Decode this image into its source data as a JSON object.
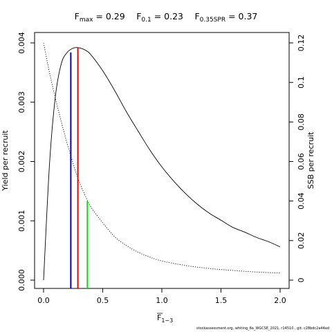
{
  "chart_data": {
    "type": "line",
    "title": {
      "parts": [
        {
          "symbol": "F",
          "sub": "max",
          "value": "0.29"
        },
        {
          "symbol": "F",
          "sub": "0.1",
          "value": "0.23"
        },
        {
          "symbol": "F",
          "sub": "0.35SPR",
          "value": "0.37"
        }
      ],
      "equals": "="
    },
    "xlabel": {
      "symbol": "F",
      "sub": "1−3"
    },
    "ylabel_left": "Yield per recruit",
    "ylabel_right": "SSB per recruit",
    "xlim": [
      0,
      2
    ],
    "ylim_left": [
      0,
      0.004
    ],
    "ylim_right": [
      0,
      0.12
    ],
    "x_ticks": [
      "0.0",
      "0.5",
      "1.0",
      "1.5",
      "2.0"
    ],
    "y_left_ticks": [
      "0.000",
      "0.001",
      "0.002",
      "0.003",
      "0.004"
    ],
    "y_right_ticks": [
      "0",
      "0.02",
      "0.04",
      "0.06",
      "0.08",
      "0.1",
      "0.12"
    ],
    "series": [
      {
        "axis": "left",
        "style": "solid",
        "color": "#000000",
        "x": [
          0,
          0.05,
          0.1,
          0.15,
          0.2,
          0.25,
          0.29,
          0.35,
          0.4,
          0.5,
          0.6,
          0.7,
          0.8,
          0.9,
          1.0,
          1.1,
          1.2,
          1.3,
          1.4,
          1.5,
          1.6,
          1.7,
          1.8,
          1.9,
          2.0
        ],
        "y": [
          0.0,
          0.00195,
          0.0031,
          0.00365,
          0.00384,
          0.00391,
          0.00392,
          0.00388,
          0.0038,
          0.00353,
          0.0032,
          0.00284,
          0.00251,
          0.00219,
          0.00191,
          0.00167,
          0.00146,
          0.00128,
          0.00113,
          0.00101,
          0.00089,
          0.00081,
          0.00072,
          0.00065,
          0.00056
        ]
      },
      {
        "axis": "right",
        "style": "dotted",
        "color": "#000000",
        "x": [
          0,
          0.05,
          0.1,
          0.15,
          0.2,
          0.25,
          0.3,
          0.35,
          0.4,
          0.5,
          0.6,
          0.7,
          0.8,
          0.9,
          1.0,
          1.2,
          1.4,
          1.6,
          1.8,
          2.0
        ],
        "y": [
          0.12,
          0.105,
          0.092,
          0.08,
          0.069,
          0.059,
          0.05,
          0.043,
          0.037,
          0.029,
          0.022,
          0.0175,
          0.0141,
          0.0116,
          0.0097,
          0.0074,
          0.0059,
          0.0049,
          0.0041,
          0.0036
        ]
      }
    ],
    "reference_lines": [
      {
        "label": "F0.1",
        "x": 0.23,
        "ytop": 0.00384,
        "axis": "left",
        "color": "#0000ff"
      },
      {
        "label": "Fmax",
        "x": 0.29,
        "ytop": 0.00392,
        "axis": "left",
        "color": "#ff0000"
      },
      {
        "label": "F0.35SPR",
        "x": 0.37,
        "ytop": 0.04,
        "axis": "right",
        "color": "#00ee00"
      }
    ],
    "grid": false,
    "legend": "none"
  },
  "footer": "stockassessment.org, whiting_6a_WGCSE_2021, r14510 , git: c28bdc2a44ad"
}
